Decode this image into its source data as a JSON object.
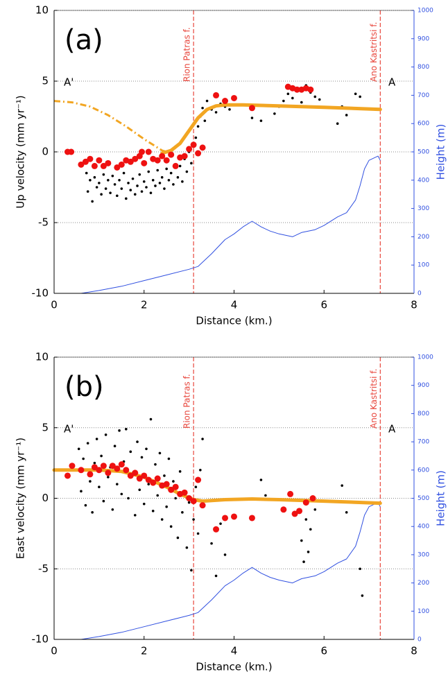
{
  "chart_data": [
    {
      "type": "scatter",
      "panel_label": "(a)",
      "profile_start": "A'",
      "profile_end": "A",
      "xlabel": "Distance (km.)",
      "ylabel": "Up velocity (mm yr⁻¹)",
      "y2label": "Height (m)",
      "xlim": [
        0,
        8
      ],
      "xticks": [
        0,
        2,
        4,
        6,
        8
      ],
      "ylim": [
        -10,
        10
      ],
      "yticks": [
        -10,
        -5,
        0,
        5,
        10
      ],
      "y2lim": [
        0,
        1000
      ],
      "y2ticks": [
        0,
        100,
        200,
        300,
        400,
        500,
        600,
        700,
        800,
        900,
        1000
      ],
      "grid": true,
      "vlines": [
        {
          "x": 3.1,
          "label": "Rion Patras f.",
          "color": "#e8463c"
        },
        {
          "x": 7.25,
          "label": "Ano Kastritsi f.",
          "color": "#e8463c"
        }
      ],
      "series": [
        {
          "style": "line",
          "axis": "y2",
          "color": "#2f4fe0",
          "x": [
            0,
            0.6,
            1,
            1.5,
            2,
            2.5,
            3,
            3.2,
            3.5,
            3.8,
            4.0,
            4.2,
            4.4,
            4.6,
            4.8,
            5.0,
            5.3,
            5.5,
            5.8,
            6.0,
            6.3,
            6.5,
            6.7,
            6.8,
            6.9,
            7.0,
            7.2,
            7.25
          ],
          "values": [
            0,
            0,
            10,
            25,
            45,
            65,
            85,
            95,
            140,
            190,
            210,
            235,
            255,
            235,
            220,
            210,
            200,
            215,
            225,
            240,
            270,
            285,
            330,
            380,
            440,
            470,
            485,
            470
          ]
        },
        {
          "style": "dots",
          "color": "#000000",
          "x": [
            0.72,
            0.75,
            0.8,
            0.85,
            0.9,
            0.95,
            1.0,
            1.05,
            1.1,
            1.15,
            1.2,
            1.25,
            1.3,
            1.35,
            1.4,
            1.45,
            1.5,
            1.55,
            1.6,
            1.65,
            1.7,
            1.75,
            1.8,
            1.85,
            1.9,
            1.95,
            2.0,
            2.05,
            2.1,
            2.15,
            2.2,
            2.25,
            2.3,
            2.35,
            2.4,
            2.45,
            2.5,
            2.55,
            2.6,
            2.65,
            2.7,
            2.75,
            2.8,
            2.85,
            2.9,
            2.95,
            3.0,
            3.05,
            3.1,
            3.15,
            3.2,
            3.25,
            3.3,
            3.35,
            3.4,
            3.5,
            3.6,
            3.7,
            3.8,
            3.9,
            4.4,
            4.6,
            4.9,
            5.0,
            5.1,
            5.2,
            5.3,
            5.4,
            5.5,
            5.6,
            5.7,
            5.8,
            5.9,
            6.3,
            6.4,
            6.5,
            6.7,
            6.8
          ],
          "values": [
            -1.5,
            -2.8,
            -2.0,
            -3.5,
            -1.8,
            -2.5,
            -2.2,
            -3.0,
            -1.6,
            -2.6,
            -2.0,
            -2.9,
            -1.7,
            -2.3,
            -3.1,
            -2.0,
            -2.6,
            -1.5,
            -3.3,
            -2.2,
            -2.7,
            -1.9,
            -3.0,
            -2.4,
            -1.6,
            -2.8,
            -2.1,
            -2.5,
            -1.4,
            -2.9,
            -2.0,
            -2.4,
            -1.3,
            -2.2,
            -1.8,
            -2.6,
            -1.2,
            -2.0,
            -1.5,
            -2.3,
            -0.9,
            -1.8,
            -1.0,
            -2.1,
            -0.5,
            -1.4,
            0.0,
            -0.8,
            0.6,
            1.0,
            1.8,
            2.5,
            3.1,
            2.2,
            3.6,
            3.0,
            2.8,
            3.4,
            3.2,
            3.0,
            2.4,
            2.2,
            2.7,
            3.2,
            3.6,
            4.1,
            3.8,
            4.4,
            3.5,
            4.7,
            4.2,
            3.9,
            3.7,
            2.0,
            3.2,
            2.6,
            4.1,
            3.9
          ]
        },
        {
          "style": "dashdot",
          "color": "#f2a623",
          "x": [
            0,
            0.4,
            0.8,
            1.2,
            1.6,
            2.0,
            2.4,
            2.6
          ],
          "values": [
            3.6,
            3.5,
            3.2,
            2.6,
            1.8,
            0.9,
            0.1,
            -0.1
          ]
        },
        {
          "style": "thick",
          "color": "#f2a623",
          "x": [
            2.4,
            2.6,
            2.8,
            3.0,
            3.2,
            3.4,
            3.6,
            3.8,
            4.2,
            5,
            6,
            7.25
          ],
          "values": [
            -0.1,
            0.1,
            0.6,
            1.5,
            2.4,
            3.0,
            3.25,
            3.32,
            3.32,
            3.25,
            3.15,
            3.0
          ]
        },
        {
          "style": "markers",
          "color": "#ee1111",
          "x": [
            0.3,
            0.38,
            0.6,
            0.7,
            0.8,
            0.9,
            1.0,
            1.1,
            1.2,
            1.4,
            1.5,
            1.6,
            1.7,
            1.8,
            1.9,
            1.95,
            2.0,
            2.1,
            2.2,
            2.3,
            2.4,
            2.5,
            2.6,
            2.7,
            2.8,
            2.9,
            3.0,
            3.1,
            3.2,
            3.3,
            3.6,
            3.8,
            4.0,
            4.4,
            5.2,
            5.3,
            5.4,
            5.5,
            5.6,
            5.7
          ],
          "values": [
            0,
            0,
            -0.9,
            -0.7,
            -0.5,
            -1.0,
            -0.6,
            -1.0,
            -0.8,
            -1.1,
            -0.9,
            -0.6,
            -0.7,
            -0.5,
            -0.3,
            0,
            -0.8,
            0,
            -0.5,
            -0.6,
            -0.3,
            -0.6,
            -0.2,
            -1.0,
            -0.4,
            -0.3,
            0.2,
            0.5,
            -0.1,
            0.3,
            4.0,
            3.6,
            3.8,
            3.1,
            4.6,
            4.5,
            4.4,
            4.4,
            4.5,
            4.4
          ]
        }
      ]
    },
    {
      "type": "scatter",
      "panel_label": "(b)",
      "profile_start": "A'",
      "profile_end": "A",
      "xlabel": "Distance (km.)",
      "ylabel": "East velocity (mm yr⁻¹)",
      "y2label": "Height (m)",
      "xlim": [
        0,
        8
      ],
      "xticks": [
        0,
        2,
        4,
        6,
        8
      ],
      "ylim": [
        -10,
        10
      ],
      "yticks": [
        -10,
        -5,
        0,
        5,
        10
      ],
      "y2lim": [
        0,
        1000
      ],
      "y2ticks": [
        0,
        100,
        200,
        300,
        400,
        500,
        600,
        700,
        800,
        900,
        1000
      ],
      "grid": true,
      "vlines": [
        {
          "x": 3.1,
          "label": "Rion Patras f.",
          "color": "#e8463c"
        },
        {
          "x": 7.25,
          "label": "Ano Kastritsi f.",
          "color": "#e8463c"
        }
      ],
      "series": [
        {
          "style": "line",
          "axis": "y2",
          "color": "#2f4fe0",
          "x": [
            0,
            0.6,
            1,
            1.5,
            2,
            2.5,
            3,
            3.2,
            3.5,
            3.8,
            4.0,
            4.2,
            4.4,
            4.6,
            4.8,
            5.0,
            5.3,
            5.5,
            5.8,
            6.0,
            6.3,
            6.5,
            6.7,
            6.8,
            6.9,
            7.0,
            7.2,
            7.25
          ],
          "values": [
            0,
            0,
            10,
            25,
            45,
            65,
            85,
            95,
            140,
            190,
            210,
            235,
            255,
            235,
            220,
            210,
            200,
            215,
            225,
            240,
            270,
            285,
            330,
            380,
            440,
            470,
            485,
            470
          ]
        },
        {
          "style": "dots",
          "color": "#000000",
          "x": [
            0.55,
            0.6,
            0.65,
            0.7,
            0.75,
            0.8,
            0.85,
            0.9,
            0.95,
            1.0,
            1.05,
            1.1,
            1.15,
            1.2,
            1.25,
            1.3,
            1.35,
            1.4,
            1.45,
            1.5,
            1.55,
            1.6,
            1.65,
            1.7,
            1.75,
            1.8,
            1.85,
            1.9,
            1.95,
            2.0,
            2.05,
            2.1,
            2.15,
            2.2,
            2.25,
            2.3,
            2.35,
            2.4,
            2.45,
            2.5,
            2.55,
            2.6,
            2.65,
            2.7,
            2.75,
            2.8,
            2.85,
            2.9,
            2.95,
            3.0,
            3.05,
            3.1,
            3.15,
            3.2,
            3.25,
            3.3,
            3.5,
            3.6,
            3.7,
            3.8,
            4.6,
            4.7,
            5.5,
            5.55,
            5.6,
            5.65,
            5.7,
            5.8,
            6.4,
            6.5,
            6.8,
            6.85
          ],
          "values": [
            3.5,
            0.5,
            2.8,
            -0.5,
            3.9,
            1.2,
            -1.0,
            2.5,
            4.2,
            0.8,
            3.0,
            -0.2,
            4.5,
            1.5,
            2.2,
            -0.8,
            3.7,
            1.0,
            4.8,
            0.3,
            2.6,
            4.9,
            0.0,
            3.3,
            1.8,
            -1.2,
            4.0,
            0.6,
            2.9,
            -0.4,
            3.5,
            1.0,
            5.6,
            -0.9,
            2.4,
            0.2,
            3.2,
            -1.5,
            1.6,
            -0.6,
            2.8,
            -2.0,
            1.2,
            0.0,
            -2.8,
            1.9,
            -1.0,
            0.5,
            -3.5,
            -0.3,
            -5.1,
            -1.5,
            0.8,
            -2.5,
            2.0,
            4.2,
            -3.2,
            -5.5,
            -1.8,
            -4.0,
            1.3,
            0.2,
            -3.0,
            -4.5,
            -1.5,
            -3.8,
            -2.2,
            -0.8,
            0.9,
            -1.0,
            -5.0,
            -6.9
          ]
        },
        {
          "style": "thick",
          "color": "#f2a623",
          "x": [
            0,
            0.5,
            1.0,
            1.5,
            2.0,
            2.5,
            2.8,
            3.1,
            3.3,
            3.8,
            4.4,
            5,
            6,
            7.25
          ],
          "values": [
            2.0,
            2.0,
            2.0,
            1.9,
            1.5,
            0.8,
            0.3,
            -0.1,
            -0.2,
            -0.1,
            -0.05,
            -0.1,
            -0.2,
            -0.35
          ]
        },
        {
          "style": "markers",
          "color": "#ee1111",
          "x": [
            0.3,
            0.4,
            0.6,
            0.8,
            0.9,
            1.0,
            1.1,
            1.2,
            1.3,
            1.4,
            1.5,
            1.6,
            1.7,
            1.8,
            1.9,
            2.0,
            2.1,
            2.2,
            2.3,
            2.4,
            2.5,
            2.6,
            2.7,
            2.8,
            2.9,
            3.0,
            3.1,
            3.2,
            3.3,
            3.6,
            3.8,
            4.0,
            4.4,
            5.1,
            5.25,
            5.35,
            5.45,
            5.6,
            5.75
          ],
          "values": [
            1.6,
            2.3,
            2.0,
            1.7,
            2.2,
            2.0,
            2.3,
            1.8,
            2.3,
            2.1,
            2.4,
            2.0,
            1.6,
            1.8,
            1.4,
            1.6,
            1.3,
            1.1,
            1.4,
            0.9,
            1.0,
            0.6,
            0.8,
            0.3,
            0.4,
            0,
            -0.2,
            1.3,
            -0.5,
            -2.2,
            -1.4,
            -1.3,
            -1.4,
            -0.8,
            0.3,
            -1.1,
            -0.9,
            -0.3,
            0
          ]
        }
      ]
    }
  ]
}
